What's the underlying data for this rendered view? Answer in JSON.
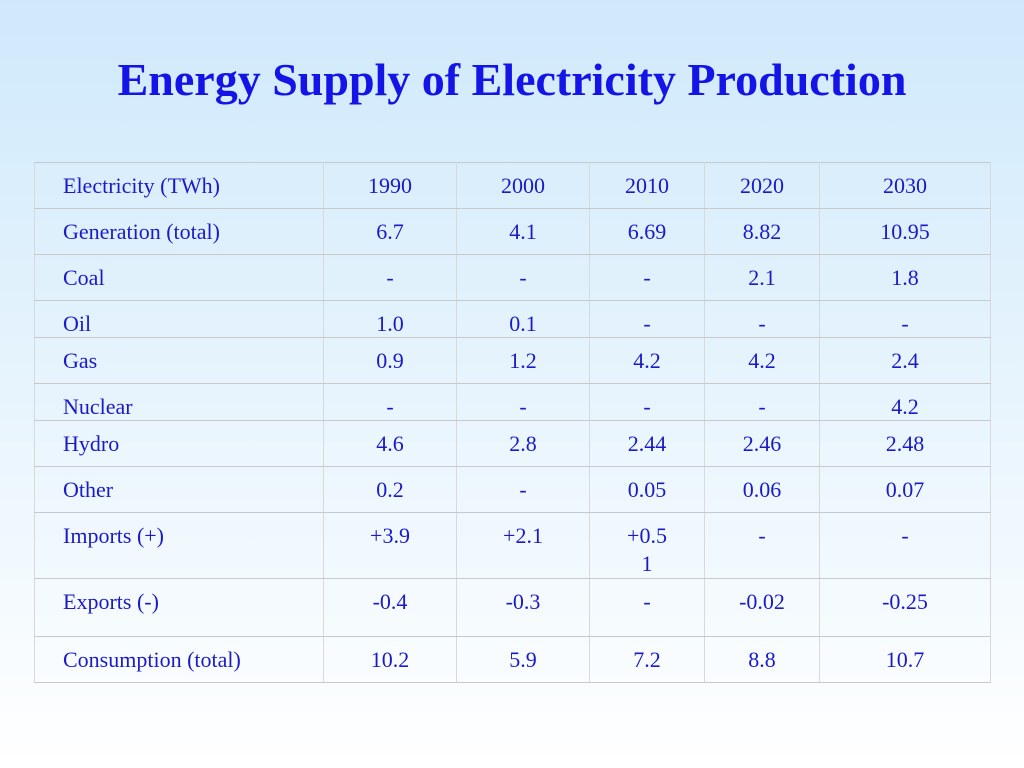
{
  "title": "Energy Supply of Electricity Production",
  "table": {
    "header": [
      "Electricity (TWh)",
      "1990",
      "2000",
      "2010",
      "2020",
      "2030"
    ],
    "rows": [
      {
        "label": "Generation (total)",
        "values": [
          "6.7",
          "4.1",
          "6.69",
          "8.82",
          "10.95"
        ]
      },
      {
        "label": "Coal",
        "values": [
          "-",
          "-",
          "-",
          "2.1",
          "1.8"
        ]
      },
      {
        "label": "Oil",
        "values": [
          "1.0",
          "0.1",
          "-",
          "-",
          "-"
        ]
      },
      {
        "label": "Gas",
        "values": [
          "0.9",
          "1.2",
          "4.2",
          "4.2",
          "2.4"
        ]
      },
      {
        "label": "Nuclear",
        "values": [
          "-",
          "-",
          "-",
          "-",
          "4.2"
        ]
      },
      {
        "label": "Hydro",
        "values": [
          "4.6",
          "2.8",
          "2.44",
          "2.46",
          "2.48"
        ]
      },
      {
        "label": "Other",
        "values": [
          "0.2",
          "-",
          "0.05",
          "0.06",
          "0.07"
        ]
      },
      {
        "label": "Imports (+)",
        "values": [
          "+3.9",
          "+2.1",
          "+0.5\n1",
          "-",
          "-"
        ]
      },
      {
        "label": "Exports (-)",
        "values": [
          "-0.4",
          "-0.3",
          "-",
          "-0.02",
          "-0.25"
        ]
      },
      {
        "label": "Consumption (total)",
        "values": [
          "10.2",
          "5.9",
          "7.2",
          "8.8",
          "10.7"
        ]
      }
    ]
  }
}
